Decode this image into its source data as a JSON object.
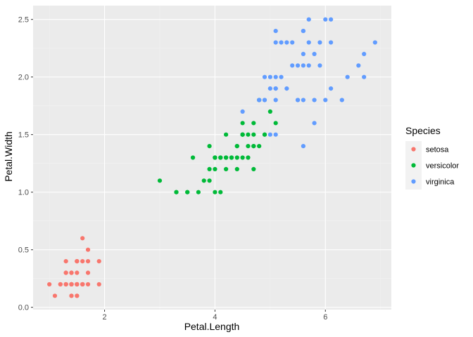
{
  "chart_data": {
    "type": "scatter",
    "xlabel": "Petal.Length",
    "ylabel": "Petal.Width",
    "xlim": [
      0.705,
      7.195
    ],
    "ylim": [
      -0.02,
      2.62
    ],
    "x_ticks": [
      2,
      4,
      6
    ],
    "x_tick_labels": [
      "2",
      "4",
      "6"
    ],
    "y_ticks": [
      0.0,
      0.5,
      1.0,
      1.5,
      2.0,
      2.5
    ],
    "y_tick_labels": [
      "0.0",
      "0.5",
      "1.0",
      "1.5",
      "2.0",
      "2.5"
    ],
    "grid": true,
    "legend": {
      "title": "Species",
      "placement": "right"
    },
    "series": [
      {
        "name": "setosa",
        "color": "#F8766D",
        "points": [
          [
            1.4,
            0.2
          ],
          [
            1.4,
            0.2
          ],
          [
            1.3,
            0.2
          ],
          [
            1.5,
            0.2
          ],
          [
            1.4,
            0.2
          ],
          [
            1.7,
            0.4
          ],
          [
            1.4,
            0.3
          ],
          [
            1.5,
            0.2
          ],
          [
            1.4,
            0.2
          ],
          [
            1.5,
            0.1
          ],
          [
            1.5,
            0.2
          ],
          [
            1.6,
            0.2
          ],
          [
            1.4,
            0.1
          ],
          [
            1.1,
            0.1
          ],
          [
            1.2,
            0.2
          ],
          [
            1.5,
            0.4
          ],
          [
            1.3,
            0.4
          ],
          [
            1.4,
            0.3
          ],
          [
            1.7,
            0.3
          ],
          [
            1.5,
            0.3
          ],
          [
            1.7,
            0.2
          ],
          [
            1.5,
            0.4
          ],
          [
            1.0,
            0.2
          ],
          [
            1.7,
            0.5
          ],
          [
            1.9,
            0.2
          ],
          [
            1.6,
            0.2
          ],
          [
            1.6,
            0.4
          ],
          [
            1.5,
            0.2
          ],
          [
            1.4,
            0.2
          ],
          [
            1.6,
            0.2
          ],
          [
            1.6,
            0.2
          ],
          [
            1.5,
            0.4
          ],
          [
            1.5,
            0.1
          ],
          [
            1.4,
            0.2
          ],
          [
            1.5,
            0.2
          ],
          [
            1.2,
            0.2
          ],
          [
            1.3,
            0.2
          ],
          [
            1.4,
            0.1
          ],
          [
            1.3,
            0.2
          ],
          [
            1.5,
            0.2
          ],
          [
            1.3,
            0.3
          ],
          [
            1.3,
            0.3
          ],
          [
            1.3,
            0.2
          ],
          [
            1.6,
            0.6
          ],
          [
            1.9,
            0.4
          ],
          [
            1.4,
            0.3
          ],
          [
            1.6,
            0.2
          ],
          [
            1.4,
            0.2
          ],
          [
            1.5,
            0.2
          ],
          [
            1.4,
            0.2
          ]
        ]
      },
      {
        "name": "versicolor",
        "color": "#00BA38",
        "points": [
          [
            4.7,
            1.4
          ],
          [
            4.5,
            1.5
          ],
          [
            4.9,
            1.5
          ],
          [
            4.0,
            1.3
          ],
          [
            4.6,
            1.5
          ],
          [
            4.5,
            1.3
          ],
          [
            4.7,
            1.6
          ],
          [
            3.3,
            1.0
          ],
          [
            4.6,
            1.3
          ],
          [
            3.9,
            1.4
          ],
          [
            3.5,
            1.0
          ],
          [
            4.2,
            1.5
          ],
          [
            4.0,
            1.0
          ],
          [
            4.7,
            1.4
          ],
          [
            3.6,
            1.3
          ],
          [
            4.4,
            1.4
          ],
          [
            4.5,
            1.5
          ],
          [
            4.1,
            1.0
          ],
          [
            4.5,
            1.5
          ],
          [
            3.9,
            1.1
          ],
          [
            4.8,
            1.8
          ],
          [
            4.0,
            1.3
          ],
          [
            4.9,
            1.5
          ],
          [
            4.7,
            1.2
          ],
          [
            4.3,
            1.3
          ],
          [
            4.4,
            1.4
          ],
          [
            4.8,
            1.4
          ],
          [
            5.0,
            1.7
          ],
          [
            4.5,
            1.5
          ],
          [
            3.5,
            1.0
          ],
          [
            3.8,
            1.1
          ],
          [
            3.7,
            1.0
          ],
          [
            3.9,
            1.2
          ],
          [
            5.1,
            1.6
          ],
          [
            4.5,
            1.5
          ],
          [
            4.5,
            1.6
          ],
          [
            4.7,
            1.5
          ],
          [
            4.4,
            1.3
          ],
          [
            4.1,
            1.3
          ],
          [
            4.0,
            1.3
          ],
          [
            4.4,
            1.2
          ],
          [
            4.6,
            1.4
          ],
          [
            4.0,
            1.2
          ],
          [
            3.3,
            1.0
          ],
          [
            4.2,
            1.3
          ],
          [
            4.2,
            1.2
          ],
          [
            4.2,
            1.3
          ],
          [
            4.3,
            1.3
          ],
          [
            3.0,
            1.1
          ],
          [
            4.1,
            1.3
          ]
        ]
      },
      {
        "name": "virginica",
        "color": "#619CFF",
        "points": [
          [
            6.0,
            2.5
          ],
          [
            5.1,
            1.9
          ],
          [
            5.9,
            2.1
          ],
          [
            5.6,
            1.8
          ],
          [
            5.8,
            2.2
          ],
          [
            6.6,
            2.1
          ],
          [
            4.5,
            1.7
          ],
          [
            6.3,
            1.8
          ],
          [
            5.8,
            1.8
          ],
          [
            6.1,
            2.5
          ],
          [
            5.1,
            2.0
          ],
          [
            5.3,
            1.9
          ],
          [
            5.5,
            2.1
          ],
          [
            5.0,
            2.0
          ],
          [
            5.1,
            2.4
          ],
          [
            5.3,
            2.3
          ],
          [
            5.5,
            1.8
          ],
          [
            6.7,
            2.2
          ],
          [
            6.9,
            2.3
          ],
          [
            5.0,
            1.5
          ],
          [
            5.7,
            2.3
          ],
          [
            4.9,
            2.0
          ],
          [
            6.7,
            2.0
          ],
          [
            4.9,
            1.8
          ],
          [
            5.7,
            2.1
          ],
          [
            6.0,
            1.8
          ],
          [
            4.8,
            1.8
          ],
          [
            4.9,
            1.8
          ],
          [
            5.6,
            2.1
          ],
          [
            5.8,
            1.6
          ],
          [
            6.1,
            1.9
          ],
          [
            6.4,
            2.0
          ],
          [
            5.6,
            2.2
          ],
          [
            5.1,
            1.5
          ],
          [
            5.6,
            1.4
          ],
          [
            6.1,
            2.3
          ],
          [
            5.6,
            2.4
          ],
          [
            5.5,
            1.8
          ],
          [
            4.8,
            1.8
          ],
          [
            5.4,
            2.1
          ],
          [
            5.6,
            2.4
          ],
          [
            5.1,
            2.3
          ],
          [
            5.1,
            1.9
          ],
          [
            5.9,
            2.3
          ],
          [
            5.7,
            2.5
          ],
          [
            5.2,
            2.3
          ],
          [
            5.0,
            1.9
          ],
          [
            5.2,
            2.0
          ],
          [
            5.4,
            2.3
          ],
          [
            5.1,
            1.8
          ]
        ]
      }
    ]
  }
}
